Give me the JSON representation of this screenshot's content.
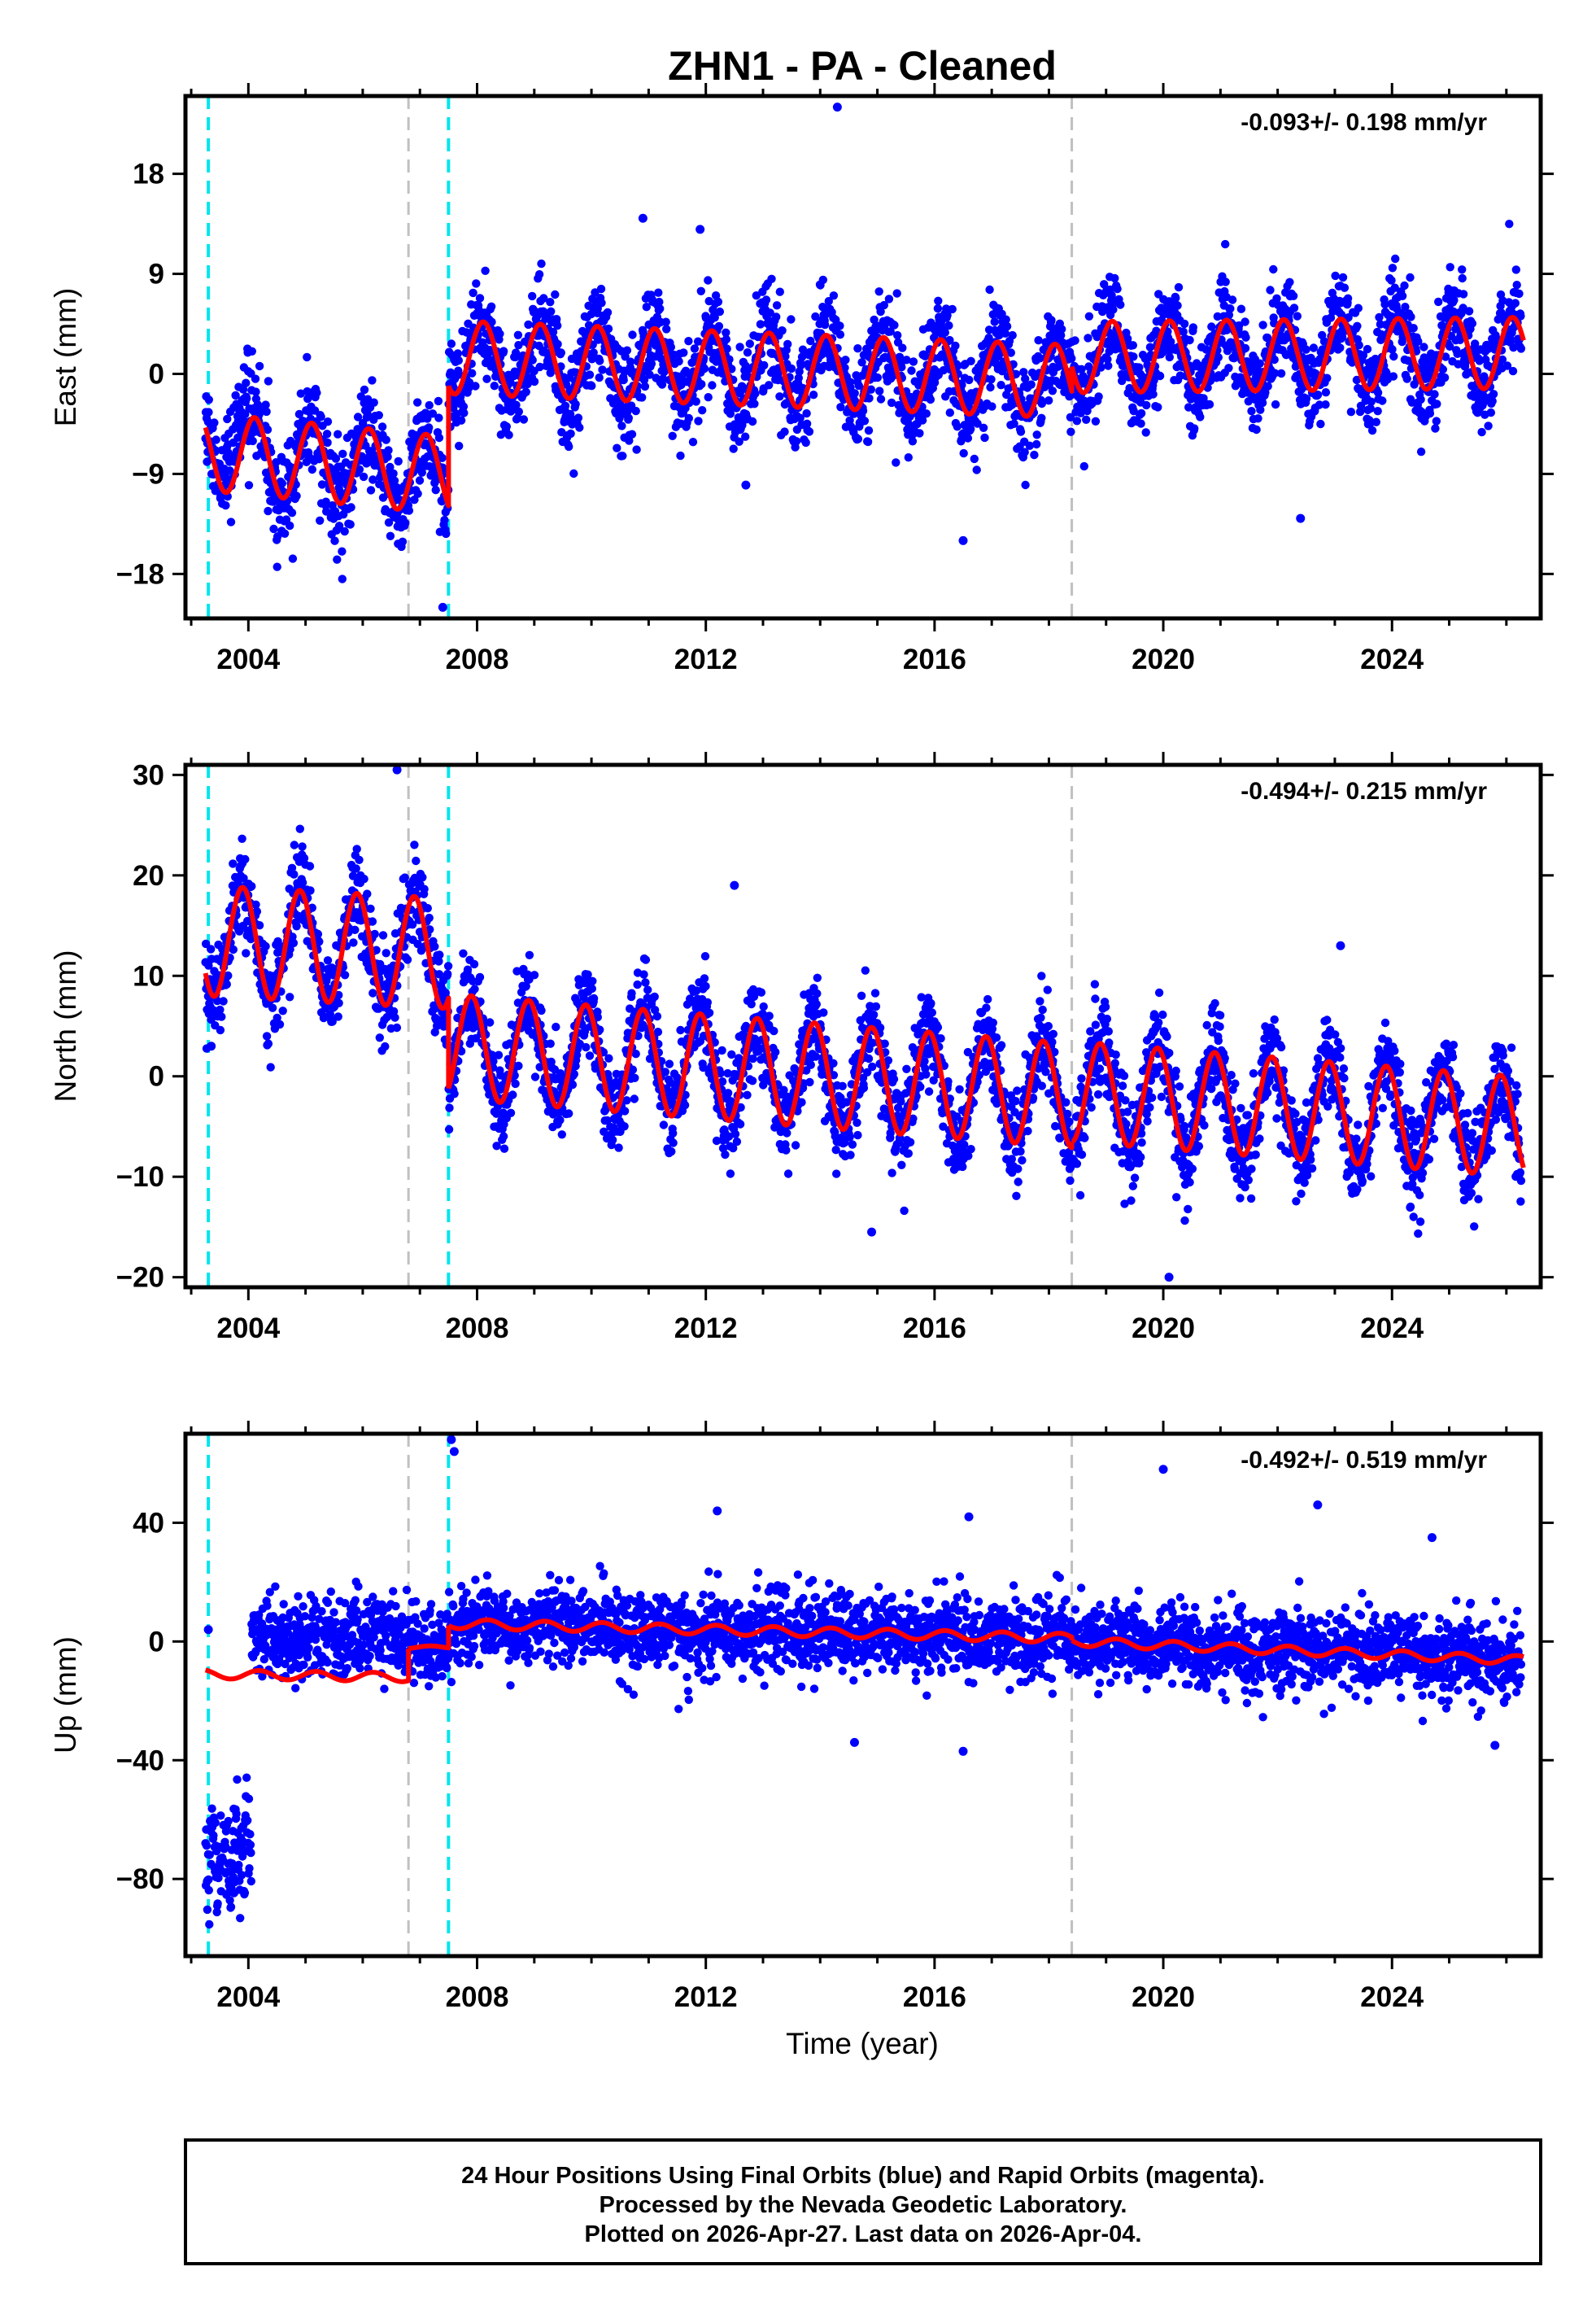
{
  "chart_data": {
    "type": "scatter",
    "title": "ZHN1  - PA - Cleaned",
    "xlabel": "Time (year)",
    "xlim": [
      2002.9,
      2026.6
    ],
    "x_ticks": [
      2004,
      2008,
      2012,
      2016,
      2020,
      2024
    ],
    "vertical_lines": [
      {
        "x": 2003.3,
        "color": "#00e5ee",
        "style": "dashed"
      },
      {
        "x": 2006.8,
        "color": "#c0c0c0",
        "style": "dashed"
      },
      {
        "x": 2007.5,
        "color": "#00e5ee",
        "style": "dashed"
      },
      {
        "x": 2018.4,
        "color": "#c0c0c0",
        "style": "dashed"
      }
    ],
    "series_colors": {
      "observed": "#0000ff",
      "model": "#ff0000"
    },
    "panels": [
      {
        "name": "east",
        "ylabel": "East (mm)",
        "ylim": [
          -22,
          25
        ],
        "y_ticks": [
          18,
          9,
          0,
          -9,
          -18
        ],
        "y_tick_labels": [
          "18",
          "9",
          "0",
          "−9",
          "−18"
        ],
        "rate": "-0.093+/- 0.198 mm/yr",
        "model": [
          {
            "start": 2003.25,
            "end": 2007.5,
            "offset": -7.0,
            "slope": -0.5,
            "amp": 3.5,
            "phase": 0.9
          },
          {
            "start": 2007.5,
            "end": 2018.4,
            "offset": 1.5,
            "slope": -0.2,
            "amp": 3.3,
            "phase": 0.9
          },
          {
            "start": 2018.4,
            "end": 2026.3,
            "offset": 1.5,
            "slope": 0.05,
            "amp": 3.2,
            "phase": 0.9
          }
        ],
        "scatter_sd": 2.2,
        "outliers": [
          [
            2014.3,
            24
          ],
          [
            2010.9,
            14
          ],
          [
            2011.9,
            13
          ],
          [
            2016.5,
            -15
          ],
          [
            2022.4,
            -13
          ],
          [
            2012.7,
            -10
          ],
          [
            2007.4,
            -21
          ]
        ]
      },
      {
        "name": "north",
        "ylabel": "North (mm)",
        "ylim": [
          -21,
          31
        ],
        "y_ticks": [
          30,
          20,
          10,
          0,
          -10,
          -20
        ],
        "y_tick_labels": [
          "30",
          "20",
          "10",
          "0",
          "−10",
          "−20"
        ],
        "rate": "-0.494+/- 0.215 mm/yr",
        "model": [
          {
            "start": 2003.25,
            "end": 2007.5,
            "offset": 13.5,
            "slope": -0.3,
            "amp": 5.5,
            "phase": 2.2
          },
          {
            "start": 2007.5,
            "end": 2018.4,
            "offset": 3.0,
            "slope": -0.45,
            "amp": 5.2,
            "phase": 2.2
          },
          {
            "start": 2018.4,
            "end": 2026.3,
            "offset": -1.5,
            "slope": -0.45,
            "amp": 5.0,
            "phase": 2.2
          }
        ],
        "scatter_sd": 2.3,
        "outliers": [
          [
            2006.6,
            30.5
          ],
          [
            2012.5,
            19
          ],
          [
            2023.1,
            13
          ],
          [
            2014.9,
            -15.5
          ],
          [
            2020.1,
            -20
          ],
          [
            2003.35,
            3
          ],
          [
            2007.8,
            10
          ]
        ]
      },
      {
        "name": "up",
        "ylabel": "Up (mm)",
        "ylim": [
          -106,
          70
        ],
        "y_ticks": [
          40,
          0,
          -40,
          -80
        ],
        "y_tick_labels": [
          "40",
          "0",
          "−40",
          "−80"
        ],
        "rate": "-0.492+/- 0.519 mm/yr",
        "model": [
          {
            "start": 2003.25,
            "end": 2006.8,
            "offset": -11.0,
            "slope": -0.3,
            "amp": 1.5,
            "phase": 0.4
          },
          {
            "start": 2006.8,
            "end": 2007.5,
            "offset": -2.0,
            "slope": 0.0,
            "amp": 0.5,
            "phase": 0.4
          },
          {
            "start": 2007.5,
            "end": 2018.4,
            "offset": 6.0,
            "slope": -0.45,
            "amp": 1.6,
            "phase": 0.4
          },
          {
            "start": 2018.4,
            "end": 2026.3,
            "offset": 0.0,
            "slope": -0.8,
            "amp": 1.5,
            "phase": 0.4
          }
        ],
        "scatter_sd": 6.5,
        "outliers": [
          [
            2007.55,
            68
          ],
          [
            2007.6,
            64
          ],
          [
            2020.0,
            58
          ],
          [
            2022.7,
            46
          ],
          [
            2012.2,
            44
          ],
          [
            2016.6,
            42
          ],
          [
            2024.7,
            35
          ],
          [
            2016.5,
            -37
          ],
          [
            2014.6,
            -34
          ],
          [
            2025.8,
            -35
          ],
          [
            2003.3,
            4
          ]
        ]
      }
    ],
    "footer_lines": [
      "24 Hour Positions Using Final Orbits (blue) and Rapid Orbits (magenta).",
      "Processed by the Nevada Geodetic Laboratory.",
      "Plotted on 2026-Apr-27. Last data on 2026-Apr-04."
    ]
  }
}
